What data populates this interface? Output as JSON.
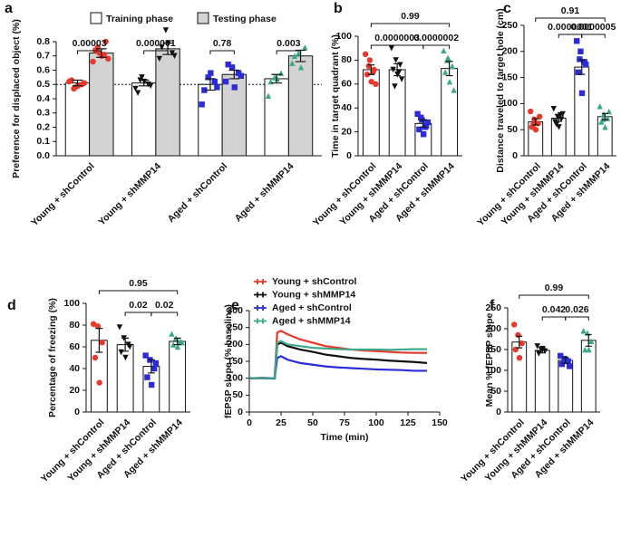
{
  "chart_data": [
    {
      "type": "bar",
      "letter": "a",
      "ylabel": "Preference for displaced object (%)",
      "categories": [
        "Young + shControl",
        "Young + shMMP14",
        "Aged + shControl",
        "Aged + shMMP14"
      ],
      "ylim": [
        0,
        0.8
      ],
      "yticks": [
        {
          "value": 0,
          "label": "0.0"
        },
        0.1,
        0.2,
        0.3,
        0.4,
        0.5,
        0.6,
        0.7,
        0.8
      ],
      "reference_line": 0.5,
      "point_colors": [
        "#e8392c",
        "#111111",
        "#2b2bd9",
        "#3aa88a"
      ],
      "markers": [
        "circle",
        "triangle-down",
        "square",
        "triangle-up"
      ],
      "series": [
        {
          "name": "Training phase",
          "color": "#ffffff",
          "values": [
            0.51,
            0.51,
            0.5,
            0.54
          ],
          "errors": [
            0.02,
            0.02,
            0.04,
            0.03
          ],
          "points": [
            [
              0.52,
              0.48,
              0.5,
              0.53,
              0.49,
              0.51,
              0.47
            ],
            [
              0.47,
              0.55,
              0.5,
              0.44,
              0.52,
              0.49,
              0.53
            ],
            [
              0.36,
              0.55,
              0.52,
              0.46,
              0.58,
              0.48
            ],
            [
              0.42,
              0.55,
              0.58,
              0.52,
              0.54
            ]
          ]
        },
        {
          "name": "Testing phase",
          "color": "#d3d3d3",
          "values": [
            0.72,
            0.75,
            0.57,
            0.7
          ],
          "errors": [
            0.03,
            0.04,
            0.03,
            0.04
          ],
          "points": [
            [
              0.66,
              0.72,
              0.8,
              0.74,
              0.7,
              0.68,
              0.76,
              0.71
            ],
            [
              0.68,
              0.88,
              0.72,
              0.76,
              0.79,
              0.7
            ],
            [
              0.52,
              0.62,
              0.58,
              0.64,
              0.48,
              0.56
            ],
            [
              0.65,
              0.72,
              0.76,
              0.7,
              0.62
            ]
          ]
        }
      ],
      "comparisons": [
        {
          "label": "0.00003",
          "category": 0
        },
        {
          "label": "0.000001",
          "category": 1
        },
        {
          "label": "0.78",
          "category": 2
        },
        {
          "label": "0.003",
          "category": 3
        }
      ]
    },
    {
      "type": "bar",
      "letter": "b",
      "ylabel": "Time in target quadrant (%)",
      "categories": [
        "Young + shControl",
        "Young + shMMP14",
        "Aged + shControl",
        "Aged + shMMP14"
      ],
      "ylim": [
        0,
        100
      ],
      "yticks": [
        0,
        20,
        40,
        60,
        80,
        100
      ],
      "point_colors": [
        "#e8392c",
        "#111111",
        "#2b2bd9",
        "#3aa88a"
      ],
      "markers": [
        "circle",
        "triangle-down",
        "square",
        "triangle-up"
      ],
      "series": [
        {
          "color": "#ffffff",
          "values": [
            72,
            72,
            27,
            73
          ],
          "errors": [
            4,
            5,
            3,
            6
          ],
          "points": [
            [
              85,
              80,
              72,
              68,
              62,
              60,
              75,
              70
            ],
            [
              90,
              80,
              76,
              72,
              68,
              64,
              58,
              70
            ],
            [
              35,
              30,
              25,
              22,
              18,
              28,
              32,
              24
            ],
            [
              88,
              82,
              75,
              70,
              62,
              55,
              80
            ]
          ]
        }
      ],
      "comparisons": [
        {
          "label": "0.0000003",
          "from": 0,
          "to": 2
        },
        {
          "label": "0.0000002",
          "from": 2,
          "to": 3
        },
        {
          "label": "0.99",
          "from": 0,
          "to": 3
        }
      ]
    },
    {
      "type": "bar",
      "letter": "c",
      "ylabel": "Distance traveled to target hole (cm)",
      "categories": [
        "Young + shControl",
        "Young + shMMP14",
        "Aged + shControl",
        "Aged + shMMP14"
      ],
      "ylim": [
        0,
        250
      ],
      "yticks": [
        0,
        50,
        100,
        150,
        200,
        250
      ],
      "point_colors": [
        "#e8392c",
        "#111111",
        "#2b2bd9",
        "#3aa88a"
      ],
      "markers": [
        "circle",
        "triangle-down",
        "square",
        "triangle-up"
      ],
      "series": [
        {
          "color": "#ffffff",
          "values": [
            65,
            72,
            170,
            75
          ],
          "errors": [
            6,
            6,
            14,
            6
          ],
          "points": [
            [
              85,
              70,
              62,
              55,
              50,
              75,
              60
            ],
            [
              90,
              75,
              70,
              65,
              55,
              80,
              60,
              78
            ],
            [
              220,
              200,
              180,
              160,
              120,
              175,
              185
            ],
            [
              95,
              80,
              72,
              65,
              55,
              85,
              70
            ]
          ]
        }
      ],
      "comparisons": [
        {
          "label": "0.0000001",
          "from": 1,
          "to": 2
        },
        {
          "label": "0.0000005",
          "from": 2,
          "to": 3
        },
        {
          "label": "0.91",
          "from": 0,
          "to": 3
        }
      ]
    },
    {
      "type": "bar",
      "letter": "d",
      "ylabel": "Percentage of freezing (%)",
      "categories": [
        "Young + shControl",
        "Young + shMMP14",
        "Aged + shControl",
        "Aged + shMMP14"
      ],
      "ylim": [
        0,
        100
      ],
      "yticks": [
        0,
        20,
        40,
        60,
        80,
        100
      ],
      "point_colors": [
        "#e8392c",
        "#111111",
        "#2b2bd9",
        "#3aa88a"
      ],
      "markers": [
        "circle",
        "triangle-down",
        "square",
        "triangle-up"
      ],
      "series": [
        {
          "color": "#ffffff",
          "values": [
            66,
            62,
            42,
            65
          ],
          "errors": [
            11,
            6,
            6,
            3
          ],
          "points": [
            [
              81,
              79,
              64,
              50,
              27
            ],
            [
              78,
              68,
              62,
              55,
              50,
              60
            ],
            [
              52,
              48,
              40,
              32,
              25,
              45
            ],
            [
              72,
              68,
              65,
              62,
              60,
              64
            ]
          ]
        }
      ],
      "comparisons": [
        {
          "label": "0.02",
          "from": 1,
          "to": 2
        },
        {
          "label": "0.02",
          "from": 2,
          "to": 3
        },
        {
          "label": "0.95",
          "from": 0,
          "to": 3
        }
      ]
    },
    {
      "type": "line",
      "letter": "e",
      "ylabel": "fEPSP slope (% baseline)",
      "xlabel": "Time (min)",
      "xlim": [
        0,
        150
      ],
      "xticks": [
        0,
        25,
        50,
        75,
        100,
        125,
        150
      ],
      "ylim": [
        0,
        300
      ],
      "yticks": [
        0,
        50,
        100,
        150,
        200,
        250,
        300
      ],
      "x": [
        0,
        10,
        20,
        22,
        25,
        30,
        40,
        50,
        60,
        70,
        80,
        90,
        100,
        110,
        120,
        130,
        140
      ],
      "series": [
        {
          "name": "Young + shControl",
          "color": "#e8392c",
          "values": [
            100,
            101,
            100,
            235,
            240,
            230,
            215,
            205,
            195,
            190,
            185,
            182,
            180,
            178,
            176,
            175,
            175
          ]
        },
        {
          "name": "Young + shMMP14",
          "color": "#111111",
          "values": [
            100,
            100,
            99,
            200,
            205,
            195,
            185,
            178,
            170,
            165,
            160,
            157,
            155,
            152,
            150,
            148,
            145
          ]
        },
        {
          "name": "Aged + shControl",
          "color": "#2b2bd9",
          "values": [
            100,
            101,
            100,
            160,
            165,
            155,
            145,
            140,
            135,
            132,
            130,
            128,
            126,
            125,
            124,
            122,
            122
          ]
        },
        {
          "name": "Aged + shMMP14",
          "color": "#3aa88a",
          "values": [
            101,
            100,
            100,
            205,
            210,
            200,
            195,
            190,
            188,
            186,
            185,
            185,
            185,
            184,
            185,
            186,
            186
          ]
        }
      ]
    },
    {
      "type": "bar",
      "letter": "f",
      "ylabel": "Mean % fEPSP slope",
      "categories": [
        "Young + shControl",
        "Young + shMMP14",
        "Aged + shControl",
        "Aged + shMMP14"
      ],
      "ylim": [
        0,
        250
      ],
      "yticks": [
        0,
        50,
        100,
        150,
        200,
        250
      ],
      "point_colors": [
        "#e8392c",
        "#111111",
        "#2b2bd9",
        "#3aa88a"
      ],
      "markers": [
        "circle",
        "triangle-down",
        "square",
        "triangle-up"
      ],
      "series": [
        {
          "color": "#ffffff",
          "values": [
            168,
            148,
            124,
            172
          ],
          "errors": [
            14,
            6,
            7,
            14
          ],
          "points": [
            [
              210,
              185,
              165,
              150,
              130
            ],
            [
              158,
              150,
              146,
              140,
              152
            ],
            [
              135,
              128,
              122,
              115,
              125,
              110
            ],
            [
              195,
              190,
              170,
              150,
              150
            ]
          ]
        }
      ],
      "comparisons": [
        {
          "label": "0.042",
          "from": 1,
          "to": 2
        },
        {
          "label": "0.026",
          "from": 2,
          "to": 3
        },
        {
          "label": "0.99",
          "from": 0,
          "to": 3
        }
      ]
    }
  ]
}
